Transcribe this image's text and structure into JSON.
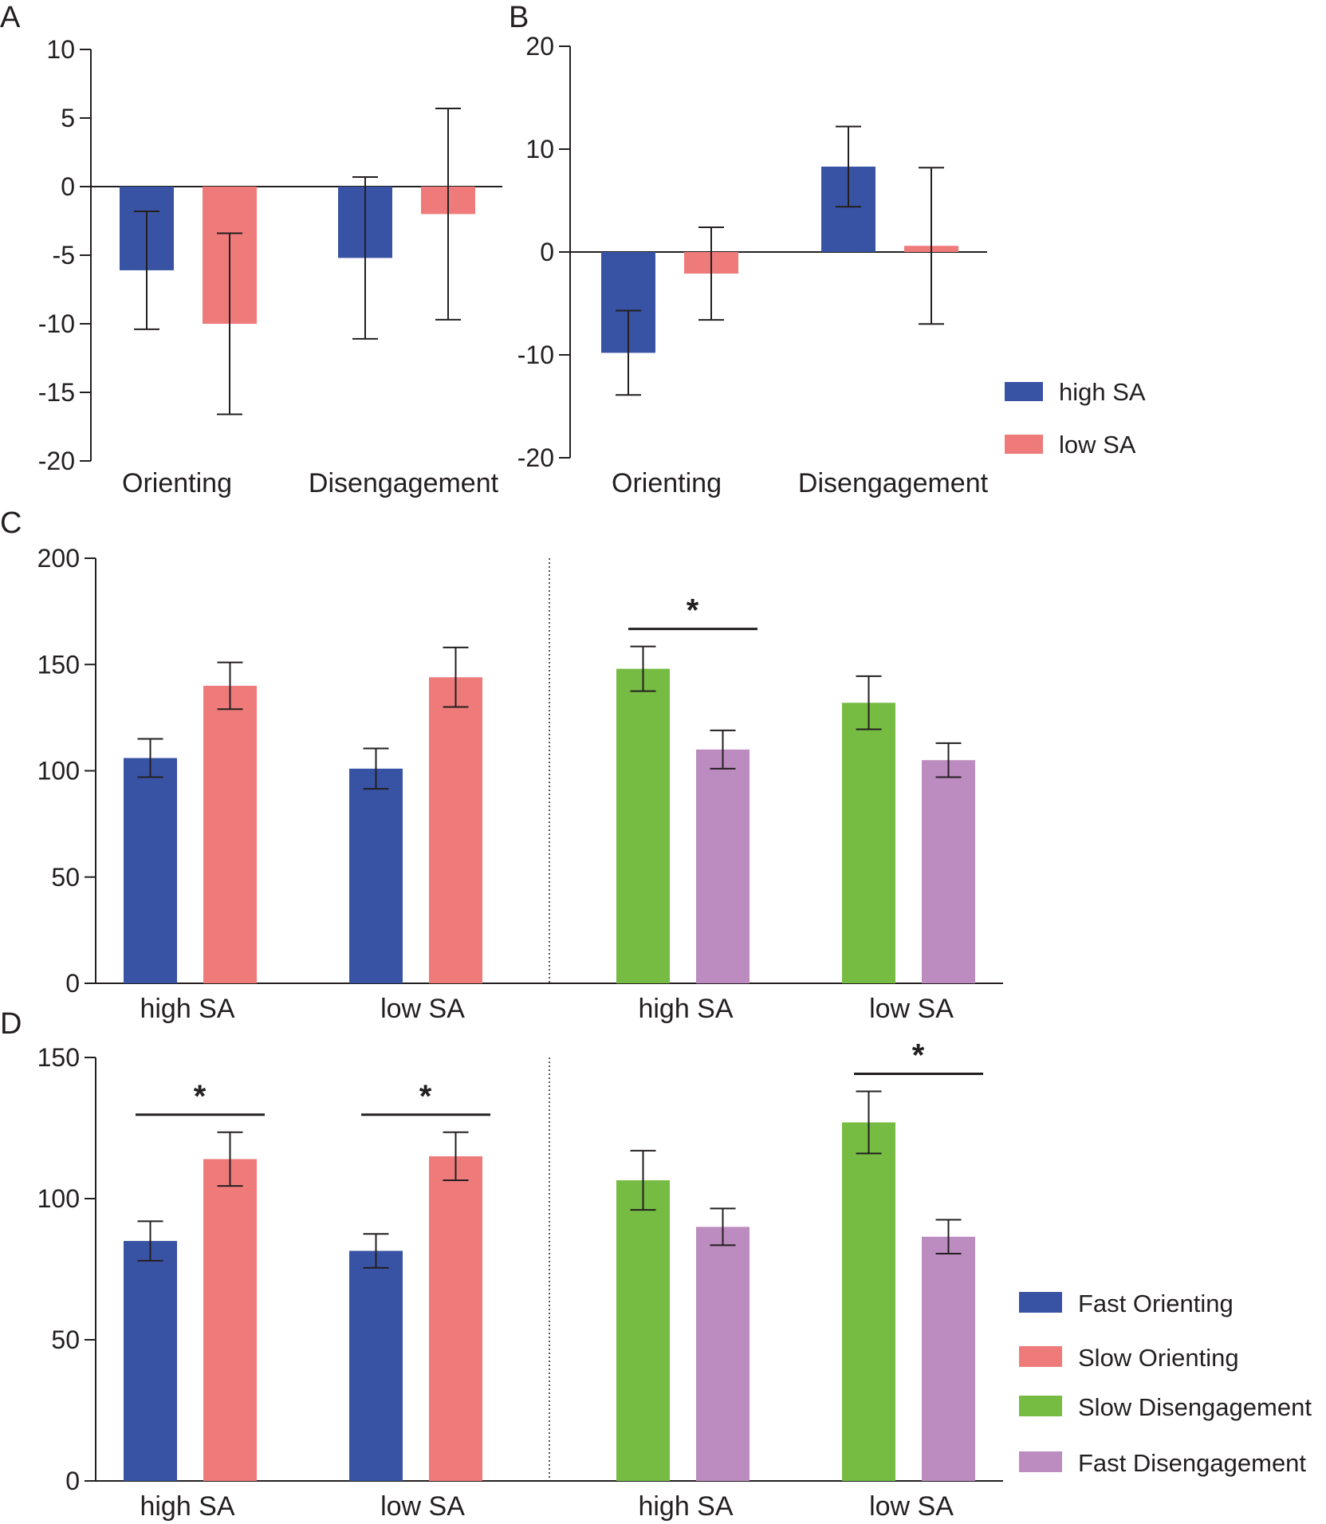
{
  "colors": {
    "blue": "#3953a4",
    "pink": "#ee7b7a",
    "green": "#76bc43",
    "purple": "#bc8bbf",
    "axis": "#231f20"
  },
  "legend_top": [
    {
      "label": "high SA",
      "color": "#3953a4"
    },
    {
      "label": "low SA",
      "color": "#ee7b7a"
    }
  ],
  "legend_bottom": [
    {
      "label": "Fast Orienting",
      "color": "#3953a4"
    },
    {
      "label": "Slow Orienting",
      "color": "#ee7b7a"
    },
    {
      "label": "Slow Disengagement",
      "color": "#76bc43"
    },
    {
      "label": "Fast Disengagement",
      "color": "#bc8bbf"
    }
  ],
  "chart_data": [
    {
      "panel": "A",
      "type": "bar",
      "categories": [
        "Orienting",
        "Disengagement"
      ],
      "yticks": [
        "10",
        "5",
        "0",
        "-5",
        "-10",
        "-15",
        "-20"
      ],
      "ylim": [
        -20,
        10
      ],
      "series": [
        {
          "name": "high SA",
          "values": [
            -6.1,
            -5.2
          ],
          "errors": [
            4.3,
            5.9
          ]
        },
        {
          "name": "low SA",
          "values": [
            -10.0,
            -2.0
          ],
          "errors": [
            6.6,
            7.7
          ]
        }
      ]
    },
    {
      "panel": "B",
      "type": "bar",
      "categories": [
        "Orienting",
        "Disengagement"
      ],
      "yticks": [
        "20",
        "10",
        "0",
        "-10",
        "-20"
      ],
      "ylim": [
        -20,
        20
      ],
      "series": [
        {
          "name": "high SA",
          "values": [
            -9.8,
            8.3
          ],
          "errors": [
            4.1,
            3.9
          ]
        },
        {
          "name": "low SA",
          "values": [
            -2.1,
            0.6
          ],
          "errors": [
            4.5,
            7.6
          ]
        }
      ]
    },
    {
      "panel": "C",
      "type": "bar",
      "categories": [
        "high SA",
        "low SA",
        "high SA",
        "low SA"
      ],
      "yticks": [
        "200",
        "150",
        "100",
        "50",
        "0"
      ],
      "ylim": [
        0,
        200
      ],
      "bars": [
        {
          "group": 0,
          "series": "Fast Orienting",
          "value": 106,
          "error": 9
        },
        {
          "group": 0,
          "series": "Slow Orienting",
          "value": 140,
          "error": 11
        },
        {
          "group": 1,
          "series": "Fast Orienting",
          "value": 101,
          "error": 9.5
        },
        {
          "group": 1,
          "series": "Slow Orienting",
          "value": 144,
          "error": 14
        },
        {
          "group": 2,
          "series": "Slow Disengagement",
          "value": 148,
          "error": 10.5
        },
        {
          "group": 2,
          "series": "Fast Disengagement",
          "value": 110,
          "error": 9
        },
        {
          "group": 3,
          "series": "Slow Disengagement",
          "value": 132,
          "error": 12.5
        },
        {
          "group": 3,
          "series": "Fast Disengagement",
          "value": 105,
          "error": 8
        }
      ],
      "significance": [
        {
          "group": 2,
          "label": "*"
        }
      ]
    },
    {
      "panel": "D",
      "type": "bar",
      "categories": [
        "high SA",
        "low SA",
        "high SA",
        "low SA"
      ],
      "yticks": [
        "150",
        "100",
        "50",
        "0"
      ],
      "ylim": [
        0,
        150
      ],
      "bars": [
        {
          "group": 0,
          "series": "Fast Orienting",
          "value": 85,
          "error": 7
        },
        {
          "group": 0,
          "series": "Slow Orienting",
          "value": 114,
          "error": 9.5
        },
        {
          "group": 1,
          "series": "Fast Orienting",
          "value": 81.5,
          "error": 6
        },
        {
          "group": 1,
          "series": "Slow Orienting",
          "value": 115,
          "error": 8.5
        },
        {
          "group": 2,
          "series": "Slow Disengagement",
          "value": 106.5,
          "error": 10.5
        },
        {
          "group": 2,
          "series": "Fast Disengagement",
          "value": 90,
          "error": 6.5
        },
        {
          "group": 3,
          "series": "Slow Disengagement",
          "value": 127,
          "error": 11
        },
        {
          "group": 3,
          "series": "Fast Disengagement",
          "value": 86.5,
          "error": 6
        }
      ],
      "significance": [
        {
          "group": 0,
          "label": "*"
        },
        {
          "group": 1,
          "label": "*"
        },
        {
          "group": 3,
          "label": "*"
        }
      ]
    }
  ]
}
